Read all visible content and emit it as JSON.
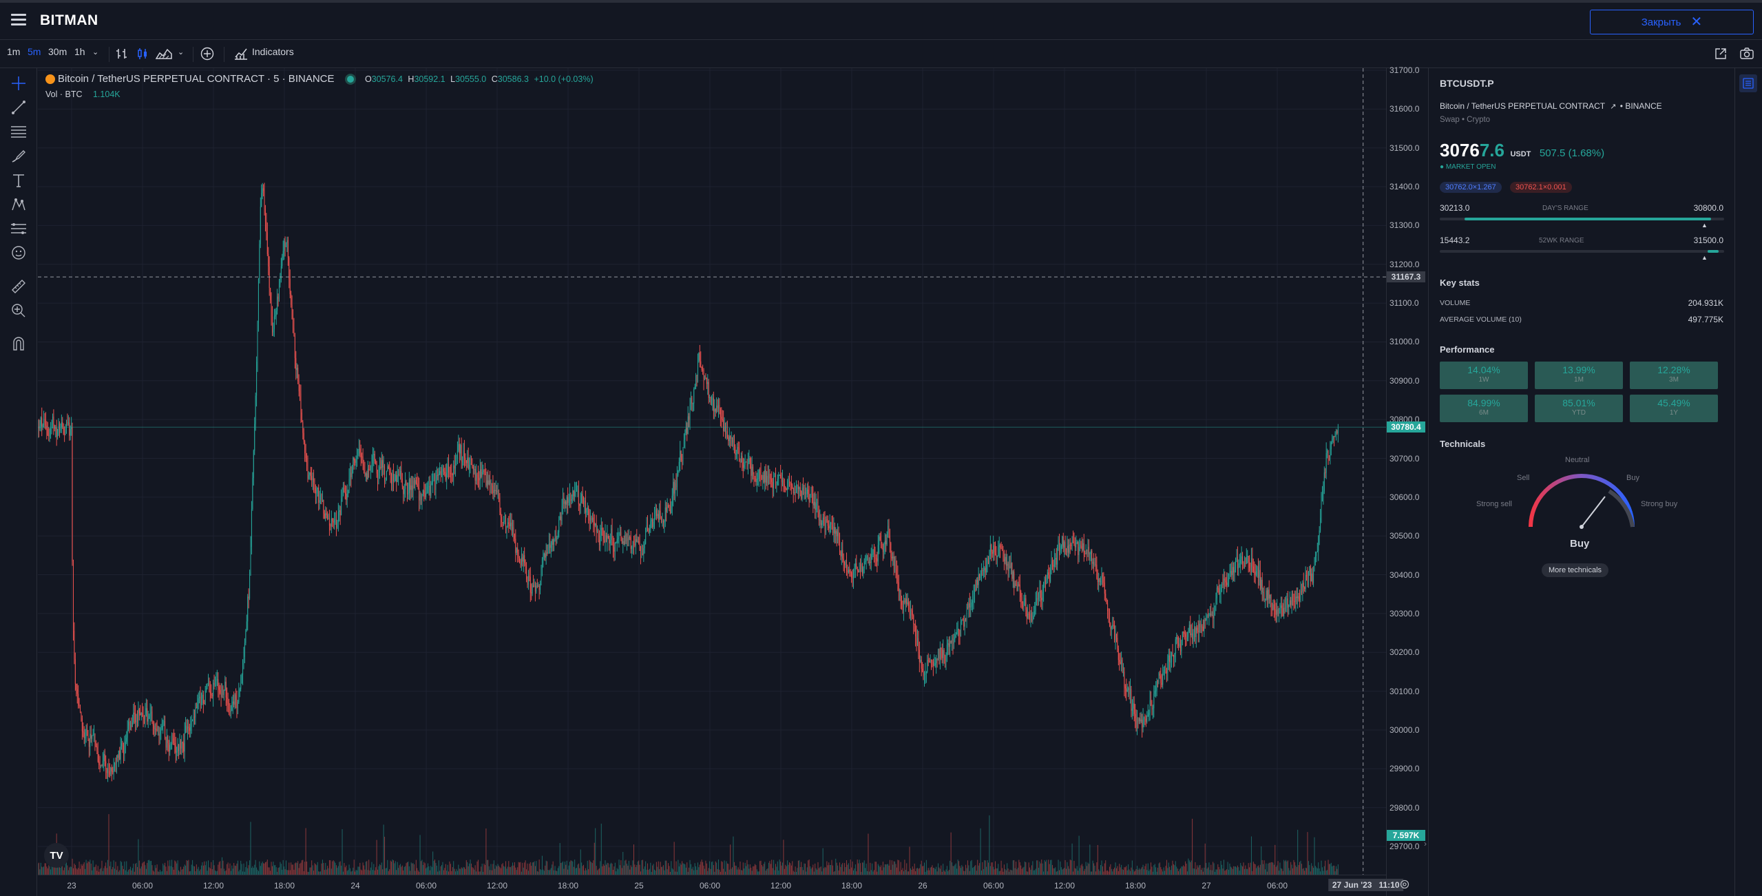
{
  "app": {
    "title": "BITMAN",
    "close_label": "Закрыть"
  },
  "toolbar": {
    "intervals": [
      "1m",
      "5m",
      "30m",
      "1h"
    ],
    "active_interval": "5m",
    "indicators_label": "Indicators"
  },
  "legend": {
    "symbol_line": "Bitcoin / TetherUS PERPETUAL CONTRACT · 5 · BINANCE",
    "o_label": "O",
    "o": "30576.4",
    "h_label": "H",
    "h": "30592.1",
    "l_label": "L",
    "l": "30555.0",
    "c_label": "C",
    "c": "30586.3",
    "change": "+10.0 (+0.03%)",
    "vol_label": "Vol · BTC",
    "vol_value": "1.104K"
  },
  "price_axis": {
    "ticks": [
      "31700.0",
      "31600.0",
      "31500.0",
      "31400.0",
      "31300.0",
      "31200.0",
      "31100.0",
      "31000.0",
      "30900.0",
      "30800.0",
      "30700.0",
      "30600.0",
      "30500.0",
      "30400.0",
      "30300.0",
      "30200.0",
      "30100.0",
      "30000.0",
      "29900.0",
      "29800.0",
      "29700.0"
    ],
    "crosshair_label": "31167.3",
    "last_price_label": "30780.4",
    "volume_label": "7.597K"
  },
  "time_axis": {
    "ticks": [
      "23",
      "06:00",
      "12:00",
      "18:00",
      "24",
      "06:00",
      "12:00",
      "18:00",
      "25",
      "06:00",
      "12:00",
      "18:00",
      "26",
      "06:00",
      "12:00",
      "18:00",
      "27",
      "06:00"
    ],
    "crosshair_date": "27 Jun '23",
    "crosshair_time": "11:10"
  },
  "colors": {
    "up": "#26a69a",
    "down": "#ef5350",
    "accent": "#2962ff",
    "bg": "#131722"
  },
  "chart_data": {
    "type": "candlestick",
    "title": "Bitcoin / TetherUS PERPETUAL CONTRACT · 5 · BINANCE",
    "ylim": [
      29650,
      31730
    ],
    "close_path": [
      {
        "x": "23 00:00",
        "y": 30060
      },
      {
        "x": "23 03:00",
        "y": 29890
      },
      {
        "x": "23 06:00",
        "y": 30050
      },
      {
        "x": "23 09:00",
        "y": 29960
      },
      {
        "x": "23 12:00",
        "y": 30130
      },
      {
        "x": "23 14:00",
        "y": 30060
      },
      {
        "x": "23 15:00",
        "y": 30400
      },
      {
        "x": "23 16:00",
        "y": 31450
      },
      {
        "x": "23 17:00",
        "y": 31000
      },
      {
        "x": "23 18:00",
        "y": 31300
      },
      {
        "x": "23 19:00",
        "y": 30900
      },
      {
        "x": "23 20:00",
        "y": 30650
      },
      {
        "x": "23 22:00",
        "y": 30520
      },
      {
        "x": "24 00:00",
        "y": 30700
      },
      {
        "x": "24 03:00",
        "y": 30650
      },
      {
        "x": "24 06:00",
        "y": 30600
      },
      {
        "x": "24 09:00",
        "y": 30700
      },
      {
        "x": "24 12:00",
        "y": 30600
      },
      {
        "x": "24 15:00",
        "y": 30350
      },
      {
        "x": "24 18:00",
        "y": 30620
      },
      {
        "x": "24 21:00",
        "y": 30500
      },
      {
        "x": "25 00:00",
        "y": 30480
      },
      {
        "x": "25 03:00",
        "y": 30620
      },
      {
        "x": "25 05:00",
        "y": 30950
      },
      {
        "x": "25 06:00",
        "y": 30850
      },
      {
        "x": "25 09:00",
        "y": 30680
      },
      {
        "x": "25 12:00",
        "y": 30640
      },
      {
        "x": "25 15:00",
        "y": 30580
      },
      {
        "x": "25 18:00",
        "y": 30400
      },
      {
        "x": "25 21:00",
        "y": 30500
      },
      {
        "x": "26 00:00",
        "y": 30150
      },
      {
        "x": "26 03:00",
        "y": 30250
      },
      {
        "x": "26 06:00",
        "y": 30480
      },
      {
        "x": "26 09:00",
        "y": 30300
      },
      {
        "x": "26 12:00",
        "y": 30500
      },
      {
        "x": "26 15:00",
        "y": 30400
      },
      {
        "x": "26 18:00",
        "y": 30000
      },
      {
        "x": "26 21:00",
        "y": 30200
      },
      {
        "x": "27 00:00",
        "y": 30300
      },
      {
        "x": "27 03:00",
        "y": 30450
      },
      {
        "x": "27 06:00",
        "y": 30300
      },
      {
        "x": "27 09:00",
        "y": 30400
      },
      {
        "x": "27 10:00",
        "y": 30700
      },
      {
        "x": "27 11:10",
        "y": 30780
      }
    ],
    "last_price": 30780.4,
    "crosshair_price": 31167.3
  },
  "panel": {
    "ticker": "BTCUSDT.P",
    "name": "Bitcoin / TetherUS PERPETUAL CONTRACT",
    "exchange": "BINANCE",
    "type_line": "Swap • Crypto",
    "price_main": "3076",
    "price_tail": "7.6",
    "currency": "USDT",
    "change": "507.5 (1.68%)",
    "market_status": "MARKET OPEN",
    "bid": "30762.0×1.267",
    "ask": "30762.1×0.001",
    "days_low": "30213.0",
    "days_label": "DAY'S RANGE",
    "days_high": "30800.0",
    "days_fill": 0.95,
    "wk_low": "15443.2",
    "wk_label": "52WK RANGE",
    "wk_high": "31500.0",
    "wk_fill": 0.97,
    "key_stats_title": "Key stats",
    "volume_label": "VOLUME",
    "volume_value": "204.931K",
    "avg_volume_label": "AVERAGE VOLUME (10)",
    "avg_volume_value": "497.775K",
    "performance_title": "Performance",
    "performance": [
      {
        "value": "14.04%",
        "label": "1W"
      },
      {
        "value": "13.99%",
        "label": "1M"
      },
      {
        "value": "12.28%",
        "label": "3M"
      },
      {
        "value": "84.99%",
        "label": "6M"
      },
      {
        "value": "85.01%",
        "label": "YTD"
      },
      {
        "value": "45.49%",
        "label": "1Y"
      }
    ],
    "technicals_title": "Technicals",
    "gauge": {
      "neutral": "Neutral",
      "sell": "Sell",
      "buy": "Buy",
      "strong_sell": "Strong sell",
      "strong_buy": "Strong buy",
      "result": "Buy"
    },
    "more_technicals": "More technicals"
  }
}
